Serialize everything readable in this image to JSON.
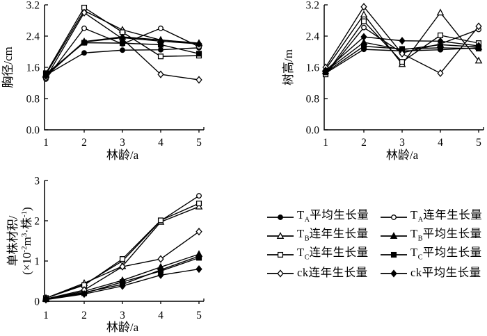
{
  "figure": {
    "background": "#ffffff",
    "ink_color": "#000000"
  },
  "chart_data": [
    {
      "type": "line",
      "position": "top-left",
      "title": "",
      "xlabel": "林龄/a",
      "ylabel": "胸径/cm",
      "x": [
        1,
        2,
        3,
        4,
        5
      ],
      "xtick_labels": [
        "1",
        "2",
        "3",
        "4",
        "5"
      ],
      "ylim": [
        0,
        3.2
      ],
      "yticks": [
        0.0,
        0.8,
        1.6,
        2.4,
        3.2
      ],
      "ytick_labels": [
        "0.0",
        "0.8",
        "1.6",
        "2.4",
        "3.2"
      ],
      "grid": false,
      "legend_position": "none",
      "series": [
        {
          "name": "TA平均生长量",
          "marker": "circle",
          "filled": true,
          "values": [
            1.4,
            1.97,
            2.04,
            2.05,
            2.1
          ]
        },
        {
          "name": "TA连年生长量",
          "marker": "circle",
          "filled": false,
          "values": [
            1.3,
            2.6,
            2.2,
            2.6,
            2.13
          ]
        },
        {
          "name": "TB连年生长量",
          "marker": "triangle",
          "filled": false,
          "values": [
            1.42,
            3.05,
            2.56,
            2.3,
            2.22
          ]
        },
        {
          "name": "TB平均生长量",
          "marker": "triangle",
          "filled": true,
          "values": [
            1.4,
            2.26,
            2.38,
            2.3,
            2.21
          ]
        },
        {
          "name": "TC连年生长量",
          "marker": "square",
          "filled": false,
          "values": [
            1.45,
            3.13,
            2.5,
            1.88,
            1.9
          ]
        },
        {
          "name": "TC平均生长量",
          "marker": "square",
          "filled": true,
          "values": [
            1.43,
            2.23,
            2.22,
            2.18,
            1.95
          ]
        },
        {
          "name": "ck连年生长量",
          "marker": "diamond",
          "filled": false,
          "values": [
            1.33,
            3.0,
            2.33,
            1.42,
            1.28
          ]
        },
        {
          "name": "ck平均生长量",
          "marker": "diamond",
          "filled": true,
          "values": [
            1.38,
            2.25,
            2.36,
            2.27,
            2.2
          ]
        }
      ]
    },
    {
      "type": "line",
      "position": "top-right",
      "title": "",
      "xlabel": "林龄/a",
      "ylabel": "树高/m",
      "x": [
        1,
        2,
        3,
        4,
        5
      ],
      "xtick_labels": [
        "1",
        "2",
        "3",
        "4",
        "5"
      ],
      "ylim": [
        0,
        3.2
      ],
      "yticks": [
        0.0,
        0.8,
        1.6,
        2.4,
        3.2
      ],
      "ytick_labels": [
        "0.0",
        "0.8",
        "1.6",
        "2.4",
        "3.2"
      ],
      "grid": false,
      "legend_position": "none",
      "series": [
        {
          "name": "TA平均生长量",
          "marker": "circle",
          "filled": true,
          "values": [
            1.45,
            2.06,
            2.02,
            2.05,
            2.1
          ]
        },
        {
          "name": "TA连年生长量",
          "marker": "circle",
          "filled": false,
          "values": [
            1.42,
            2.62,
            1.97,
            2.2,
            2.57
          ]
        },
        {
          "name": "TB连年生长量",
          "marker": "triangle",
          "filled": false,
          "values": [
            1.55,
            2.95,
            1.68,
            3.0,
            1.77
          ]
        },
        {
          "name": "TB平均生长量",
          "marker": "triangle",
          "filled": true,
          "values": [
            1.5,
            2.24,
            2.05,
            2.18,
            2.12
          ]
        },
        {
          "name": "TC连年生长量",
          "marker": "square",
          "filled": false,
          "values": [
            1.42,
            2.78,
            1.74,
            2.42,
            2.22
          ]
        },
        {
          "name": "TC平均生长量",
          "marker": "square",
          "filled": true,
          "values": [
            1.47,
            2.14,
            2.07,
            2.1,
            2.08
          ]
        },
        {
          "name": "ck连年生长量",
          "marker": "diamond",
          "filled": false,
          "values": [
            1.6,
            3.15,
            1.95,
            1.45,
            2.65
          ]
        },
        {
          "name": "ck平均生长量",
          "marker": "diamond",
          "filled": true,
          "values": [
            1.52,
            2.38,
            2.28,
            2.27,
            2.15
          ]
        }
      ]
    },
    {
      "type": "line",
      "position": "bottom-left",
      "title": "",
      "xlabel": "林龄/a",
      "ylabel": "单株材积/(×10⁻²m³·株⁻¹)",
      "ylabel_lines": [
        [
          {
            "t": "单株材积/"
          }
        ],
        [
          {
            "t": "(×10"
          },
          {
            "t": "-2",
            "sup": true
          },
          {
            "t": "m"
          },
          {
            "t": "3",
            "sup": true
          },
          {
            "t": "·株"
          },
          {
            "t": "-1",
            "sup": true
          },
          {
            "t": ")"
          }
        ]
      ],
      "x": [
        1,
        2,
        3,
        4,
        5
      ],
      "xtick_labels": [
        "1",
        "2",
        "3",
        "4",
        "5"
      ],
      "ylim": [
        0,
        3
      ],
      "yticks": [
        0,
        1,
        2,
        3
      ],
      "ytick_labels": [
        "0",
        "1",
        "2",
        "3"
      ],
      "grid": false,
      "legend_position": "none",
      "series": [
        {
          "name": "TA平均生长量",
          "marker": "circle",
          "filled": true,
          "values": [
            0.05,
            0.22,
            0.42,
            0.78,
            1.12
          ]
        },
        {
          "name": "TA连年生长量",
          "marker": "circle",
          "filled": false,
          "values": [
            0.08,
            0.42,
            1.0,
            2.0,
            2.62
          ]
        },
        {
          "name": "TB连年生长量",
          "marker": "triangle",
          "filled": false,
          "values": [
            0.08,
            0.45,
            0.87,
            1.97,
            2.35
          ]
        },
        {
          "name": "TB平均生长量",
          "marker": "triangle",
          "filled": true,
          "values": [
            0.05,
            0.25,
            0.52,
            0.85,
            1.17
          ]
        },
        {
          "name": "TC连年生长量",
          "marker": "square",
          "filled": false,
          "values": [
            0.08,
            0.4,
            1.05,
            2.01,
            2.43
          ]
        },
        {
          "name": "TC平均生长量",
          "marker": "square",
          "filled": true,
          "values": [
            0.05,
            0.2,
            0.48,
            0.75,
            1.08
          ]
        },
        {
          "name": "ck连年生长量",
          "marker": "diamond",
          "filled": false,
          "values": [
            0.06,
            0.28,
            0.86,
            1.05,
            1.73
          ]
        },
        {
          "name": "ck平均生长量",
          "marker": "diamond",
          "filled": true,
          "values": [
            0.04,
            0.18,
            0.38,
            0.65,
            0.8
          ]
        }
      ]
    }
  ],
  "legend": {
    "columns": [
      [
        {
          "marker": "circle",
          "filled": true,
          "prefix": "T",
          "sub": "A",
          "label": "平均生长量"
        },
        {
          "marker": "triangle",
          "filled": false,
          "prefix": "T",
          "sub": "B",
          "label": "连年生长量"
        },
        {
          "marker": "square",
          "filled": false,
          "prefix": "T",
          "sub": "C",
          "label": "连年生长量"
        },
        {
          "marker": "diamond",
          "filled": false,
          "prefix": "ck",
          "sub": "",
          "label": "连年生长量"
        }
      ],
      [
        {
          "marker": "circle",
          "filled": false,
          "prefix": "T",
          "sub": "A",
          "label": "连年生长量"
        },
        {
          "marker": "triangle",
          "filled": true,
          "prefix": "T",
          "sub": "B",
          "label": "平均生长量"
        },
        {
          "marker": "square",
          "filled": true,
          "prefix": "T",
          "sub": "C",
          "label": "平均生长量"
        },
        {
          "marker": "diamond",
          "filled": true,
          "prefix": "ck",
          "sub": "",
          "label": "平均生长量"
        }
      ]
    ]
  }
}
